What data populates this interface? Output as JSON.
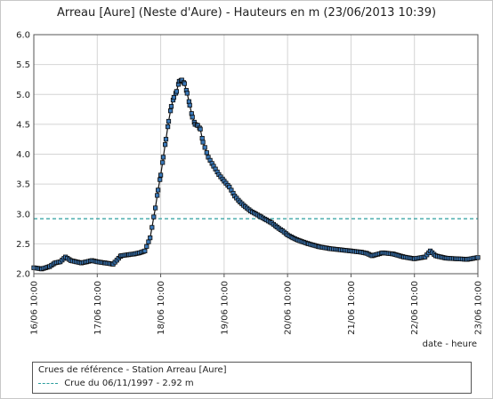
{
  "chart_data": {
    "type": "line",
    "title": "Arreau [Aure] (Neste d'Aure) - Hauteurs en m (23/06/2013 10:39)",
    "xlabel": "date - heure",
    "ylabel": "",
    "x_tick_labels": [
      "16/06 10:00",
      "17/06 10:00",
      "18/06 10:00",
      "19/06 10:00",
      "20/06 10:00",
      "21/06 10:00",
      "22/06 10:00",
      "23/06 10:00"
    ],
    "xlim_hours": [
      0,
      168
    ],
    "ylim": [
      2.0,
      6.0
    ],
    "y_ticks": [
      "2.0",
      "2.5",
      "3.0",
      "3.5",
      "4.0",
      "4.5",
      "5.0",
      "5.5",
      "6.0"
    ],
    "grid": true,
    "series": [
      {
        "name": "",
        "color": "#3a78b8",
        "marker": "square",
        "x_hours": [
          0,
          3,
          6,
          8,
          10,
          12,
          14,
          16,
          18,
          20,
          22,
          24,
          27,
          30,
          33,
          36,
          38,
          40,
          42,
          44,
          46,
          47,
          48,
          49,
          50,
          51,
          52,
          53,
          54,
          55,
          56,
          57,
          58,
          59,
          60,
          61,
          62,
          63,
          64,
          66,
          68,
          70,
          72,
          74,
          76,
          78,
          80,
          82,
          84,
          86,
          88,
          90,
          92,
          94,
          96,
          98,
          100,
          104,
          108,
          112,
          116,
          120,
          124,
          126,
          128,
          132,
          136,
          140,
          144,
          148,
          150,
          152,
          156,
          160,
          164,
          168
        ],
        "values": [
          2.1,
          2.08,
          2.12,
          2.18,
          2.2,
          2.28,
          2.22,
          2.2,
          2.18,
          2.2,
          2.22,
          2.2,
          2.18,
          2.16,
          2.3,
          2.32,
          2.33,
          2.35,
          2.38,
          2.6,
          3.1,
          3.4,
          3.65,
          3.95,
          4.25,
          4.55,
          4.8,
          4.95,
          5.05,
          5.22,
          5.24,
          5.18,
          5.02,
          4.82,
          4.62,
          4.5,
          4.48,
          4.42,
          4.2,
          3.95,
          3.8,
          3.66,
          3.55,
          3.45,
          3.3,
          3.2,
          3.12,
          3.05,
          3.0,
          2.95,
          2.9,
          2.85,
          2.78,
          2.72,
          2.65,
          2.6,
          2.56,
          2.5,
          2.45,
          2.42,
          2.4,
          2.38,
          2.36,
          2.34,
          2.3,
          2.35,
          2.33,
          2.28,
          2.25,
          2.28,
          2.38,
          2.3,
          2.26,
          2.25,
          2.24,
          2.27
        ]
      }
    ],
    "reference_lines": [
      {
        "label": "Crue du 06/11/1997 - 2.92 m",
        "value": 2.92,
        "color": "#2a9d9d",
        "style": "dashed"
      }
    ],
    "legend": {
      "title": "Crues de référence - Station Arreau [Aure]",
      "placement": "bottom"
    }
  }
}
